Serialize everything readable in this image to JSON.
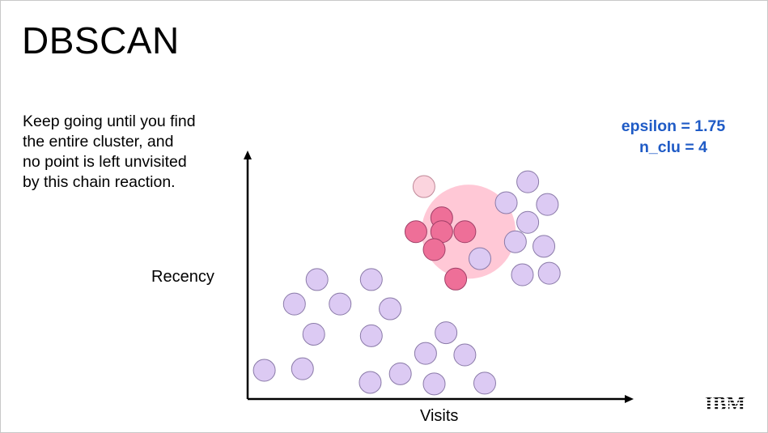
{
  "slide": {
    "title": "DBSCAN",
    "description_lines": [
      "Keep going until you find",
      "the entire cluster, and",
      "no point is left unvisited",
      "by this chain reaction."
    ],
    "params": {
      "epsilon_text": "epsilon = 1.75",
      "n_clu_text": "n_clu = 4",
      "color": "#1f5bc6"
    },
    "logo": {
      "name": "ibm-logo",
      "text": "IBM"
    }
  },
  "chart_data": {
    "type": "scatter",
    "xlabel": "Visits",
    "ylabel": "Recency",
    "xlim": [
      0,
      14.3
    ],
    "ylim": [
      0,
      9.7
    ],
    "axis_color": "#000000",
    "neighborhood": {
      "center": [
        8.22,
        6.64
      ],
      "radius": 1.75,
      "fill": "#ffc8d6"
    },
    "categories_colors": {
      "unvisited": {
        "fill": "#dccaf3",
        "stroke": "#8a7aa8"
      },
      "cluster": {
        "fill": "#ee6f98",
        "stroke": "#a04068"
      },
      "visited": {
        "fill": "#fbd4de",
        "stroke": "#c08898"
      }
    },
    "series": [
      {
        "name": "",
        "status": "cluster",
        "points": [
          [
            7.22,
            7.19
          ],
          [
            6.26,
            6.64
          ],
          [
            7.22,
            6.64
          ],
          [
            8.08,
            6.64
          ],
          [
            6.94,
            5.93
          ],
          [
            7.74,
            4.76
          ]
        ]
      },
      {
        "name": "",
        "status": "visited",
        "points": [
          [
            6.56,
            8.43
          ]
        ]
      },
      {
        "name": "",
        "status": "unvisited",
        "points": [
          [
            10.42,
            8.62
          ],
          [
            9.62,
            7.79
          ],
          [
            11.15,
            7.72
          ],
          [
            10.42,
            7.01
          ],
          [
            9.96,
            6.24
          ],
          [
            11.02,
            6.06
          ],
          [
            8.64,
            5.57
          ],
          [
            10.22,
            4.93
          ],
          [
            11.22,
            4.99
          ],
          [
            2.58,
            4.74
          ],
          [
            4.6,
            4.74
          ],
          [
            1.74,
            3.77
          ],
          [
            3.44,
            3.77
          ],
          [
            5.3,
            3.58
          ],
          [
            2.46,
            2.57
          ],
          [
            4.6,
            2.51
          ],
          [
            7.38,
            2.63
          ],
          [
            6.62,
            1.81
          ],
          [
            8.08,
            1.75
          ],
          [
            0.62,
            1.14
          ],
          [
            2.04,
            1.2
          ],
          [
            5.68,
            1.0
          ],
          [
            4.56,
            0.66
          ],
          [
            6.94,
            0.6
          ],
          [
            8.82,
            0.63
          ]
        ]
      }
    ]
  }
}
